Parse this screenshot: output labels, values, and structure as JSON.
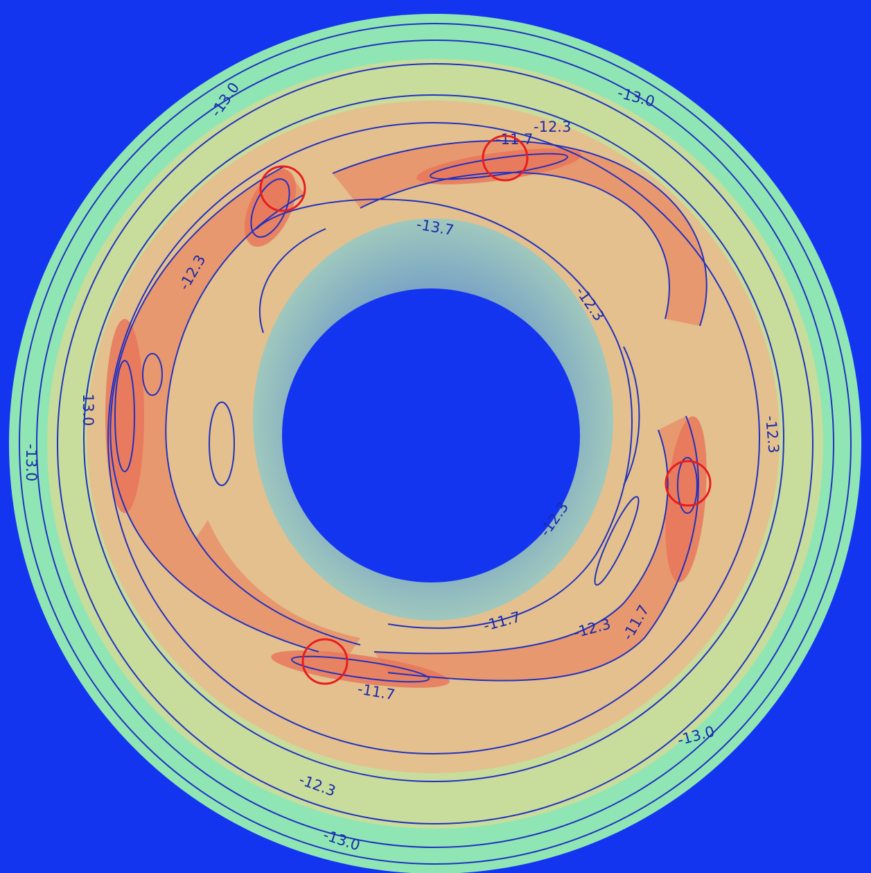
{
  "figure": {
    "background_color": "#1435f0",
    "contour_line_color": "#2030c0",
    "marker_color": "#e81c1c",
    "colormap": [
      "#8fe6b4",
      "#c8e0a0",
      "#e6c490",
      "#e8a880",
      "#e88060"
    ]
  },
  "contour_labels": [
    {
      "text": "-13.0"
    },
    {
      "text": "-12.3"
    },
    {
      "text": "-11.7"
    },
    {
      "text": "-13.7"
    },
    {
      "text": "-12.3"
    },
    {
      "text": "-12.3"
    },
    {
      "text": "-13.0"
    },
    {
      "text": "-12.3"
    },
    {
      "text": "-13.0"
    },
    {
      "text": "-12.3"
    },
    {
      "text": "-11.7"
    },
    {
      "text": "-12.3"
    },
    {
      "text": "-11.7"
    },
    {
      "text": "-11.7"
    },
    {
      "text": "-13.0"
    },
    {
      "text": "-12.3"
    },
    {
      "text": "-13.0"
    },
    {
      "text": "-13.0"
    }
  ],
  "markers": [
    {
      "name": "circle-marker-upper-left"
    },
    {
      "name": "circle-marker-top"
    },
    {
      "name": "circle-marker-right"
    },
    {
      "name": "circle-marker-bottom"
    }
  ]
}
